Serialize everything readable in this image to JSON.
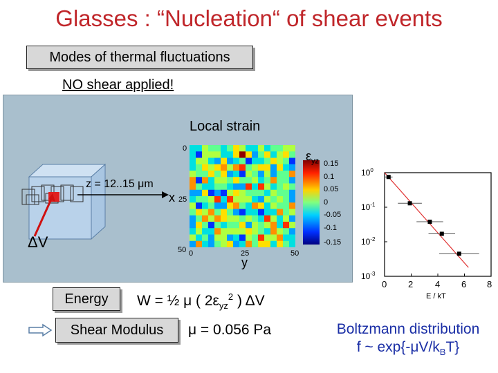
{
  "title": "Glasses : “Nucleation“ of shear events",
  "modes_label": "Modes of thermal fluctuations",
  "no_shear_label": "NO shear applied!",
  "strain_map": {
    "title": "Local strain",
    "x_ticks": [
      "0",
      "25",
      "50"
    ],
    "y_ticks": [
      "0",
      "25",
      "50"
    ],
    "x_axis_label": "x",
    "y_axis_label": "y",
    "colorbar_symbol": "ε",
    "colorbar_sub": "yz",
    "colorbar_ticks": [
      "0.15",
      "0.1",
      "0.05",
      "0",
      "-0.05",
      "-0.1",
      "-0.15"
    ]
  },
  "cube": {
    "z_label": "z = 12..15 μm",
    "delta_v_label": "ΔV"
  },
  "energy": {
    "label": "Energy",
    "formula_prefix": "W = ½ μ ( 2ε",
    "formula_sub": "yz",
    "formula_sup": "2",
    "formula_suffix": " ) ΔV"
  },
  "shear_modulus": {
    "label": "Shear Modulus",
    "formula": "μ = 0.056 Pa"
  },
  "boltzmann": {
    "line1": "Boltzmann distribution",
    "line2_prefix": "f ~ exp{-μV/k",
    "line2_sub": "B",
    "line2_suffix": "T}"
  },
  "chart_data": {
    "type": "scatter",
    "xlabel": "E / kT",
    "ylabel": "",
    "xlim": [
      0,
      8
    ],
    "ylim": [
      0.001,
      1.5
    ],
    "y_scale": "log",
    "x_ticks": [
      "0",
      "2",
      "4",
      "6",
      "8"
    ],
    "y_ticks": [
      "10",
      "10",
      "10",
      "10"
    ],
    "y_tick_exponents": [
      "0",
      "-1",
      "-2",
      "-3"
    ],
    "points": [
      {
        "x": 0.3,
        "y": 0.75
      },
      {
        "x": 1.9,
        "y": 0.13
      },
      {
        "x": 3.4,
        "y": 0.038
      },
      {
        "x": 4.3,
        "y": 0.017
      },
      {
        "x": 5.6,
        "y": 0.0045
      }
    ],
    "x_errors": [
      0.3,
      0.9,
      1.0,
      1.0,
      1.5
    ],
    "fit_line": {
      "x": [
        0,
        6.3
      ],
      "y": [
        1.0,
        0.0018
      ]
    },
    "marker_color": "#000000",
    "line_color": "#e03030"
  }
}
